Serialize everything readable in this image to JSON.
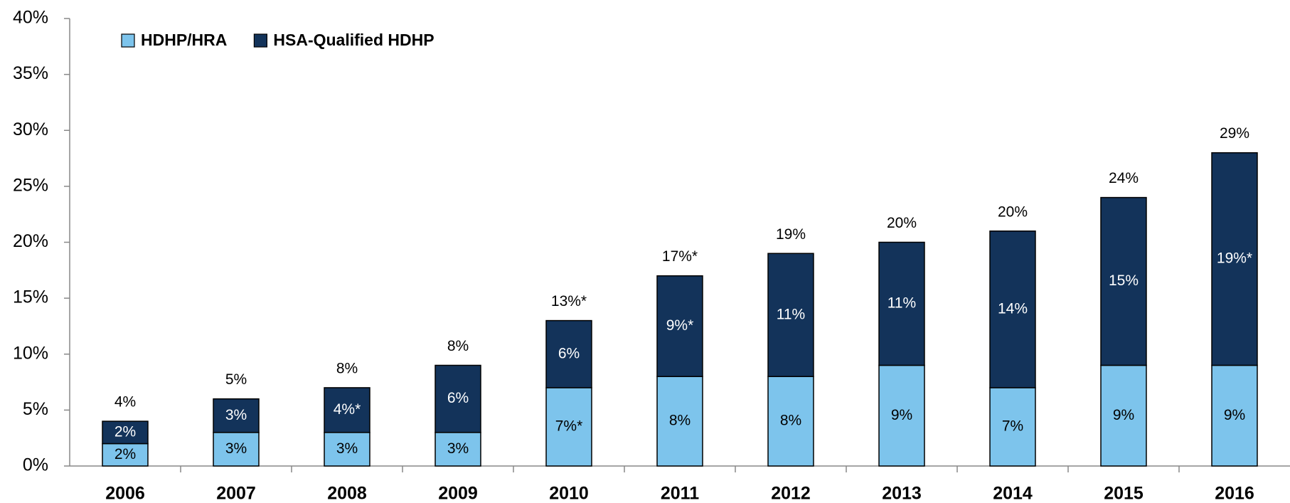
{
  "chart_data": {
    "type": "stacked_bar",
    "categories": [
      "2006",
      "2007",
      "2008",
      "2009",
      "2010",
      "2011",
      "2012",
      "2013",
      "2014",
      "2015",
      "2016"
    ],
    "series": [
      {
        "name": "HDHP/HRA",
        "color": "#7dc4ec",
        "values": [
          2,
          3,
          3,
          3,
          7,
          8,
          8,
          9,
          7,
          9,
          9
        ],
        "value_labels": [
          "2%",
          "3%",
          "3%",
          "3%",
          "7%*",
          "8%",
          "8%",
          "9%",
          "7%",
          "9%",
          "9%"
        ]
      },
      {
        "name": "HSA-Qualified HDHP",
        "color": "#13335a",
        "values": [
          2,
          3,
          4,
          6,
          6,
          9,
          11,
          11,
          14,
          15,
          19
        ],
        "value_labels": [
          "2%",
          "3%",
          "4%*",
          "6%",
          "6%",
          "9%*",
          "11%",
          "11%",
          "14%",
          "15%",
          "19%*"
        ]
      }
    ],
    "totals": [
      4,
      5,
      8,
      8,
      13,
      17,
      19,
      20,
      20,
      24,
      29
    ],
    "total_labels": [
      "4%",
      "5%",
      "8%",
      "8%",
      "13%*",
      "17%*",
      "19%",
      "20%",
      "20%",
      "24%",
      "29%"
    ],
    "ylim": [
      0,
      40
    ],
    "yticks": [
      {
        "value": 0,
        "label": "0%"
      },
      {
        "value": 5,
        "label": "5%"
      },
      {
        "value": 10,
        "label": "10%"
      },
      {
        "value": 15,
        "label": "15%"
      },
      {
        "value": 20,
        "label": "20%"
      },
      {
        "value": 25,
        "label": "25%"
      },
      {
        "value": 30,
        "label": "30%"
      },
      {
        "value": 35,
        "label": "35%"
      },
      {
        "value": 40,
        "label": "40%"
      }
    ],
    "legend": "top-left",
    "grid": false
  }
}
